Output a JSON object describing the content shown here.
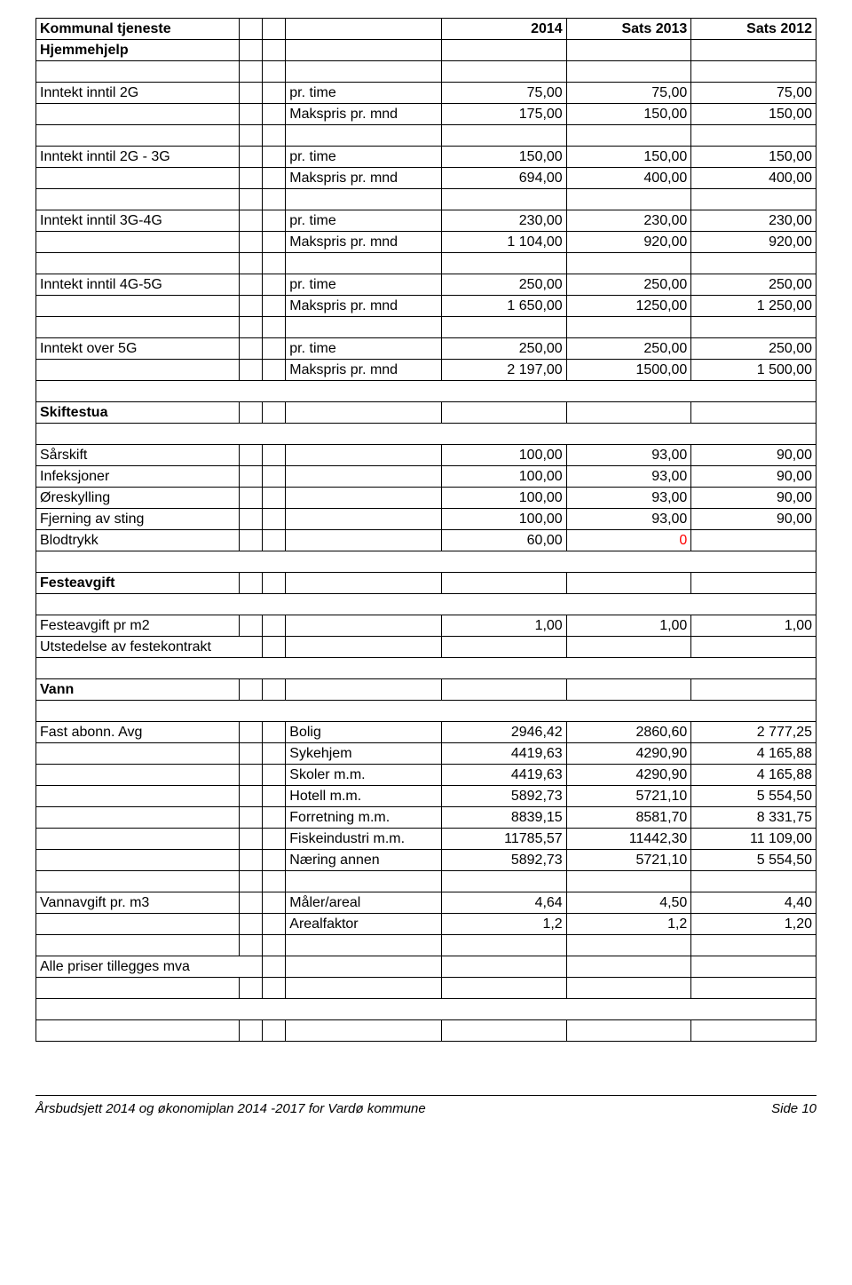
{
  "headers": {
    "col0": "Kommunal tjeneste",
    "c2014": "2014",
    "c2013": "Sats 2013",
    "c2012": "Sats 2012"
  },
  "sections": {
    "hjemmehjelp": "Hjemmehjelp",
    "skiftestua": "Skiftestua",
    "festeavgift": "Festeavgift",
    "vann": "Vann"
  },
  "labels": {
    "inntekt_2g": "Inntekt inntil 2G",
    "inntekt_2g_3g": "Inntekt inntil 2G - 3G",
    "inntekt_3g_4g": "Inntekt inntil 3G-4G",
    "inntekt_4g_5g": "Inntekt inntil 4G-5G",
    "inntekt_over_5g": "Inntekt over 5G",
    "pr_time": "pr. time",
    "makspris_mnd": "Makspris pr. mnd",
    "sarskift": "Sårskift",
    "infeksjoner": "Infeksjoner",
    "oreskylling": "Øreskylling",
    "fjerning_sting": "Fjerning av sting",
    "blodtrykk": "Blodtrykk",
    "festeavgift_m2": "Festeavgift pr m2",
    "utstedelse": "Utstedelse av festekontrakt",
    "fast_abonn": "Fast abonn. Avg",
    "bolig": "Bolig",
    "sykehjem": "Sykehjem",
    "skoler": "Skoler m.m.",
    "hotell": "Hotell m.m.",
    "forretning": "Forretning m.m.",
    "fiskeindustri": "Fiskeindustri m.m.",
    "naering": "Næring annen",
    "vannavgift": "Vannavgift pr. m3",
    "maler": "Måler/areal",
    "arealfaktor": "Arealfaktor",
    "alle_priser": "Alle priser tillegges mva"
  },
  "values": {
    "i2g_time": {
      "c2014": "75,00",
      "c2013": "75,00",
      "c2012": "75,00"
    },
    "i2g_maks": {
      "c2014": "175,00",
      "c2013": "150,00",
      "c2012": "150,00"
    },
    "i2g3g_time": {
      "c2014": "150,00",
      "c2013": "150,00",
      "c2012": "150,00"
    },
    "i2g3g_maks": {
      "c2014": "694,00",
      "c2013": "400,00",
      "c2012": "400,00"
    },
    "i3g4g_time": {
      "c2014": "230,00",
      "c2013": "230,00",
      "c2012": "230,00"
    },
    "i3g4g_maks": {
      "c2014": "1 104,00",
      "c2013": "920,00",
      "c2012": "920,00"
    },
    "i4g5g_time": {
      "c2014": "250,00",
      "c2013": "250,00",
      "c2012": "250,00"
    },
    "i4g5g_maks": {
      "c2014": "1 650,00",
      "c2013": "1250,00",
      "c2012": "1 250,00"
    },
    "i5g_time": {
      "c2014": "250,00",
      "c2013": "250,00",
      "c2012": "250,00"
    },
    "i5g_maks": {
      "c2014": "2 197,00",
      "c2013": "1500,00",
      "c2012": "1 500,00"
    },
    "sarskift": {
      "c2014": "100,00",
      "c2013": "93,00",
      "c2012": "90,00"
    },
    "infeksjoner": {
      "c2014": "100,00",
      "c2013": "93,00",
      "c2012": "90,00"
    },
    "oreskylling": {
      "c2014": "100,00",
      "c2013": "93,00",
      "c2012": "90,00"
    },
    "fjerning": {
      "c2014": "100,00",
      "c2013": "93,00",
      "c2012": "90,00"
    },
    "blodtrykk": {
      "c2014": "60,00",
      "c2013": "0",
      "c2012": ""
    },
    "feste_m2": {
      "c2014": "1,00",
      "c2013": "1,00",
      "c2012": "1,00"
    },
    "bolig": {
      "c2014": "2946,42",
      "c2013": "2860,60",
      "c2012": "2 777,25"
    },
    "sykehjem": {
      "c2014": "4419,63",
      "c2013": "4290,90",
      "c2012": "4 165,88"
    },
    "skoler": {
      "c2014": "4419,63",
      "c2013": "4290,90",
      "c2012": "4 165,88"
    },
    "hotell": {
      "c2014": "5892,73",
      "c2013": "5721,10",
      "c2012": "5 554,50"
    },
    "forretning": {
      "c2014": "8839,15",
      "c2013": "8581,70",
      "c2012": "8 331,75"
    },
    "fiskeindustri": {
      "c2014": "11785,57",
      "c2013": "11442,30",
      "c2012": "11 109,00"
    },
    "naering": {
      "c2014": "5892,73",
      "c2013": "5721,10",
      "c2012": "5 554,50"
    },
    "maler": {
      "c2014": "4,64",
      "c2013": "4,50",
      "c2012": "4,40"
    },
    "arealfaktor": {
      "c2014": "1,2",
      "c2013": "1,2",
      "c2012": "1,20"
    }
  },
  "footer": {
    "left": "Årsbudsjett 2014 og økonomiplan 2014 -2017 for Vardø kommune",
    "right": "Side 10"
  },
  "styling": {
    "border_color": "#000000",
    "background": "#ffffff",
    "font_family": "Arial",
    "font_size_body": 16,
    "font_size_footer": 15,
    "red_color": "#ff0000"
  }
}
